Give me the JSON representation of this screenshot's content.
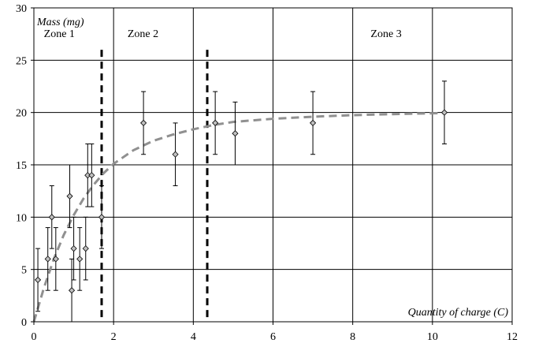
{
  "chart_data": {
    "type": "scatter",
    "title": "",
    "xlabel": "Quantity of charge (C)",
    "ylabel": "Mass (mg)",
    "xlim": [
      0,
      12
    ],
    "ylim": [
      0,
      30
    ],
    "x_ticks": [
      "0",
      "2",
      "4",
      "6",
      "8",
      "10",
      "12"
    ],
    "y_ticks": [
      "0",
      "5",
      "10",
      "15",
      "20",
      "25",
      "30"
    ],
    "grid": true,
    "legend": "none",
    "series": [
      {
        "marker": "diamond",
        "color": "#c0c0c0",
        "points": [
          {
            "x": 0.1,
            "y": 4,
            "err": 3
          },
          {
            "x": 0.35,
            "y": 6,
            "err": 3
          },
          {
            "x": 0.45,
            "y": 10,
            "err": 3
          },
          {
            "x": 0.55,
            "y": 6,
            "err": 3
          },
          {
            "x": 0.9,
            "y": 12,
            "err": 3
          },
          {
            "x": 0.95,
            "y": 3,
            "err": 3
          },
          {
            "x": 1.0,
            "y": 7,
            "err": 3
          },
          {
            "x": 1.15,
            "y": 6,
            "err": 3
          },
          {
            "x": 1.3,
            "y": 7,
            "err": 3
          },
          {
            "x": 1.35,
            "y": 14,
            "err": 3
          },
          {
            "x": 1.45,
            "y": 14,
            "err": 3
          },
          {
            "x": 1.7,
            "y": 10,
            "err": 3
          },
          {
            "x": 2.75,
            "y": 19,
            "err": 3
          },
          {
            "x": 3.55,
            "y": 16,
            "err": 3
          },
          {
            "x": 4.55,
            "y": 19,
            "err": 3
          },
          {
            "x": 5.05,
            "y": 18,
            "err": 3
          },
          {
            "x": 7.0,
            "y": 19,
            "err": 3
          },
          {
            "x": 10.3,
            "y": 20,
            "err": 3
          }
        ]
      }
    ],
    "fit_curve": {
      "style": "dashed",
      "color": "#909090",
      "points": [
        [
          0,
          0
        ],
        [
          0.25,
          3.2
        ],
        [
          0.5,
          6.0
        ],
        [
          0.75,
          8.3
        ],
        [
          1.0,
          10.2
        ],
        [
          1.25,
          11.8
        ],
        [
          1.5,
          13.1
        ],
        [
          1.75,
          14.2
        ],
        [
          2.0,
          15.1
        ],
        [
          2.5,
          16.4
        ],
        [
          3.0,
          17.3
        ],
        [
          3.5,
          17.9
        ],
        [
          4.0,
          18.4
        ],
        [
          4.5,
          18.8
        ],
        [
          5.0,
          19.1
        ],
        [
          6.0,
          19.4
        ],
        [
          7.0,
          19.6
        ],
        [
          8.0,
          19.75
        ],
        [
          9.0,
          19.85
        ],
        [
          10.3,
          19.95
        ]
      ]
    },
    "zone_dividers": [
      1.7,
      4.35
    ],
    "zones": [
      {
        "label": "Zone 1",
        "x": 0.25
      },
      {
        "label": "Zone 2",
        "x": 2.35
      },
      {
        "label": "Zone 3",
        "x": 8.45
      }
    ],
    "zone_label_y": 27.2
  }
}
